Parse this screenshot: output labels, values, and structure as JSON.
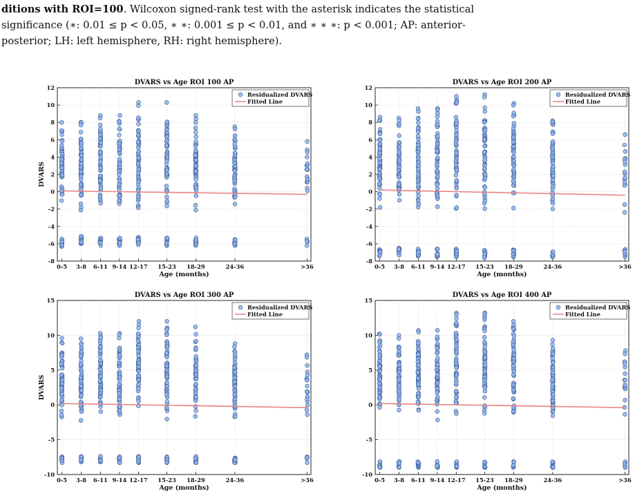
{
  "caption": {
    "line1_bold": "ditions with ROI=100",
    "line1_rest": ". Wilcoxon signed-rank test with the asterisk indicates the statistical",
    "line2": "significance (∗: 0.01 ≤ p < 0.05, ∗ ∗: 0.001 ≤ p < 0.01, and ∗ ∗ ∗: p < 0.001; AP: anterior-",
    "line3": "posterior; LH: left hemisphere, RH: right hemisphere)."
  },
  "colors": {
    "points_fill": "#8fb4ec",
    "points_edge": "#3b5a95",
    "fitted_line": "#e88585"
  },
  "chart_data": [
    {
      "type": "scatter",
      "title": "DVARS vs Age ROI 100 AP",
      "xlabel": "Age (months)",
      "ylabel": "DVARS",
      "categories": [
        "0-5",
        "3-8",
        "6-11",
        "9-14",
        "12-17",
        "15-23",
        "18-29",
        "24-36",
        ">36"
      ],
      "ylim": [
        -8,
        12
      ],
      "yticks": [
        -8,
        -6,
        -4,
        -2,
        0,
        2,
        4,
        6,
        8,
        10,
        12
      ],
      "grid": true,
      "legend": "top-right",
      "series": [
        {
          "name": "Residualized DVARS",
          "marker": "circle",
          "ranges": [
            [
              -6.3,
              8.0
            ],
            [
              -6.0,
              8.0
            ],
            [
              -6.2,
              8.8
            ],
            [
              -6.2,
              8.8
            ],
            [
              -6.1,
              10.3
            ],
            [
              -6.2,
              10.3
            ],
            [
              -6.2,
              8.8
            ],
            [
              -6.2,
              7.5
            ],
            [
              -6.2,
              5.8
            ]
          ]
        },
        {
          "name": "Fitted Line",
          "type": "line",
          "y_start": 0.1,
          "y_end": -0.3
        }
      ]
    },
    {
      "type": "scatter",
      "title": "DVARS vs Age ROI 200 AP",
      "xlabel": "Age (months)",
      "ylabel": "",
      "categories": [
        "0-5",
        "3-8",
        "6-11",
        "9-14",
        "12-17",
        "15-23",
        "18-29",
        "24-36",
        ">36"
      ],
      "ylim": [
        -8,
        12
      ],
      "yticks": [
        -8,
        -6,
        -4,
        -2,
        0,
        2,
        4,
        6,
        8,
        10,
        12
      ],
      "grid": true,
      "legend": "top-right",
      "series": [
        {
          "name": "Residualized DVARS",
          "marker": "circle",
          "ranges": [
            [
              -7.4,
              8.6
            ],
            [
              -7.3,
              8.5
            ],
            [
              -7.4,
              9.6
            ],
            [
              -7.5,
              9.6
            ],
            [
              -7.5,
              11.0
            ],
            [
              -7.6,
              11.2
            ],
            [
              -7.5,
              10.2
            ],
            [
              -7.5,
              8.2
            ],
            [
              -7.5,
              6.6
            ]
          ]
        },
        {
          "name": "Fitted Line",
          "type": "line",
          "y_start": 0.2,
          "y_end": -0.4
        }
      ]
    },
    {
      "type": "scatter",
      "title": "DVARS vs Age ROI 300 AP",
      "xlabel": "Age (months)",
      "ylabel": "DVARS",
      "categories": [
        "0-5",
        "3-8",
        "6-11",
        "9-14",
        "12-17",
        "15-23",
        "18-29",
        "24-36",
        ">36"
      ],
      "ylim": [
        -10,
        15
      ],
      "yticks": [
        -10,
        -5,
        0,
        5,
        10,
        15
      ],
      "grid": true,
      "legend": "top-right",
      "series": [
        {
          "name": "Residualized DVARS",
          "marker": "circle",
          "ranges": [
            [
              -8.3,
              9.6
            ],
            [
              -8.2,
              9.5
            ],
            [
              -8.2,
              10.3
            ],
            [
              -8.3,
              10.3
            ],
            [
              -8.3,
              12.0
            ],
            [
              -8.3,
              12.0
            ],
            [
              -8.3,
              11.2
            ],
            [
              -8.3,
              8.8
            ],
            [
              -8.3,
              7.2
            ]
          ]
        },
        {
          "name": "Fitted Line",
          "type": "line",
          "y_start": 0.2,
          "y_end": -0.4
        }
      ]
    },
    {
      "type": "scatter",
      "title": "DVARS vs Age ROI 400 AP",
      "xlabel": "Age (months)",
      "ylabel": "",
      "categories": [
        "0-5",
        "3-8",
        "6-11",
        "9-14",
        "12-17",
        "15-23",
        "18-29",
        "24-36",
        ">36"
      ],
      "ylim": [
        -10,
        15
      ],
      "yticks": [
        -10,
        -5,
        0,
        5,
        10,
        15
      ],
      "grid": true,
      "legend": "top-right",
      "series": [
        {
          "name": "Residualized DVARS",
          "marker": "circle",
          "ranges": [
            [
              -9.0,
              10.2
            ],
            [
              -9.0,
              10.0
            ],
            [
              -9.0,
              10.7
            ],
            [
              -9.0,
              10.7
            ],
            [
              -9.0,
              13.2
            ],
            [
              -9.0,
              13.2
            ],
            [
              -9.0,
              12.0
            ],
            [
              -9.0,
              9.3
            ],
            [
              -9.0,
              7.8
            ]
          ]
        },
        {
          "name": "Fitted Line",
          "type": "line",
          "y_start": 0.2,
          "y_end": -0.4
        }
      ]
    }
  ]
}
